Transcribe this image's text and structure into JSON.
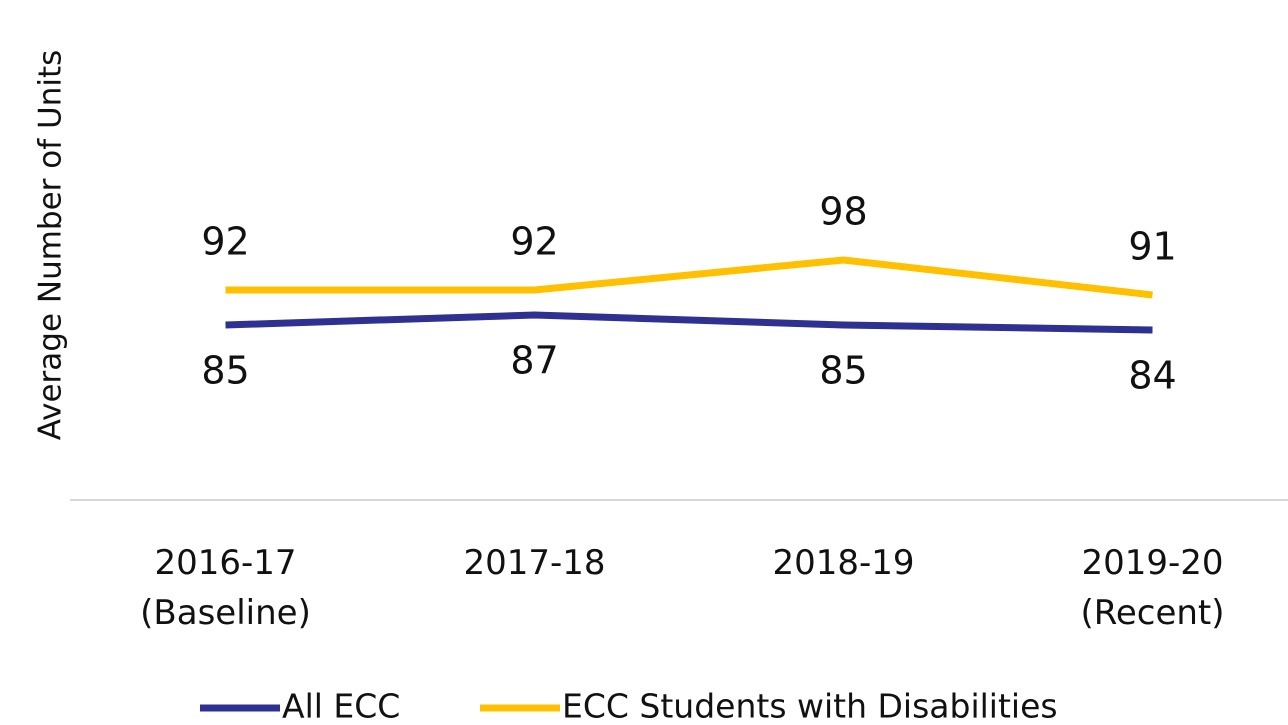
{
  "chart_data": {
    "type": "line",
    "y_label": "Average Number of Units",
    "categories": [
      "2016-17\n(Baseline)",
      "2017-18",
      "2018-19",
      "2019-20\n(Recent)"
    ],
    "series": [
      {
        "name": "All ECC",
        "color": "#2e3092",
        "values": [
          85,
          87,
          85,
          84
        ]
      },
      {
        "name": "ECC Students with Disabilities",
        "color": "#ffc000",
        "values": [
          92,
          92,
          98,
          91
        ]
      }
    ],
    "ylim": [
      50,
      150
    ],
    "legend": "bottom"
  }
}
